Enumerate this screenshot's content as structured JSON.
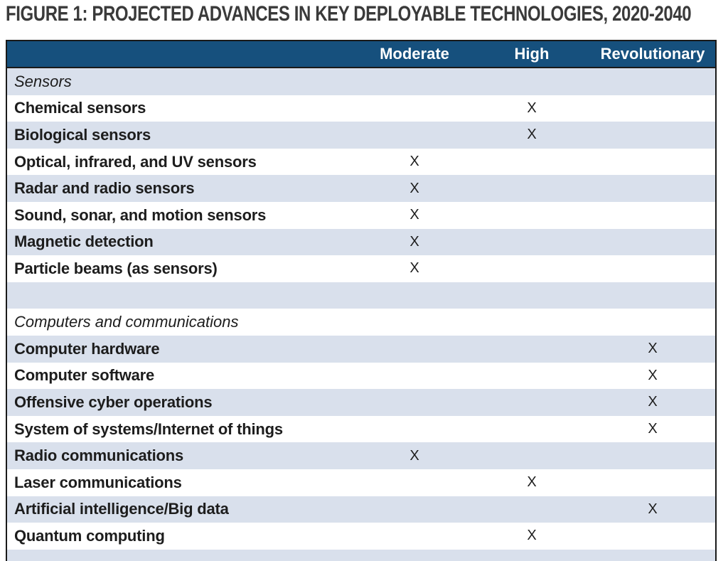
{
  "title": "FIGURE 1: PROJECTED ADVANCES IN KEY DEPLOYABLE TECHNOLOGIES, 2020-2040",
  "colors": {
    "header_bg": "#16507D",
    "header_text": "#FFFFFF",
    "stripe_bg": "#D9E0EC",
    "row_bg": "#FFFFFF",
    "border": "#1A1A1A",
    "title_text": "#3A3A3A",
    "body_text": "#1D1D1D"
  },
  "table": {
    "columns": [
      "Moderate",
      "High",
      "Revolutionary"
    ],
    "mark_symbol": "X",
    "rows": [
      {
        "type": "section",
        "label": "Sensors",
        "moderate": "",
        "high": "",
        "revolutionary": ""
      },
      {
        "type": "item",
        "label": "Chemical sensors",
        "moderate": "",
        "high": "X",
        "revolutionary": ""
      },
      {
        "type": "item",
        "label": "Biological sensors",
        "moderate": "",
        "high": "X",
        "revolutionary": ""
      },
      {
        "type": "item",
        "label": "Optical, infrared, and UV sensors",
        "moderate": "X",
        "high": "",
        "revolutionary": ""
      },
      {
        "type": "item",
        "label": "Radar and radio sensors",
        "moderate": "X",
        "high": "",
        "revolutionary": ""
      },
      {
        "type": "item",
        "label": "Sound, sonar, and motion sensors",
        "moderate": "X",
        "high": "",
        "revolutionary": ""
      },
      {
        "type": "item",
        "label": "Magnetic detection",
        "moderate": "X",
        "high": "",
        "revolutionary": ""
      },
      {
        "type": "item",
        "label": "Particle beams (as sensors)",
        "moderate": "X",
        "high": "",
        "revolutionary": ""
      },
      {
        "type": "blank",
        "label": "",
        "moderate": "",
        "high": "",
        "revolutionary": ""
      },
      {
        "type": "section",
        "label": "Computers and communications",
        "moderate": "",
        "high": "",
        "revolutionary": ""
      },
      {
        "type": "item",
        "label": "Computer hardware",
        "moderate": "",
        "high": "",
        "revolutionary": "X"
      },
      {
        "type": "item",
        "label": "Computer software",
        "moderate": "",
        "high": "",
        "revolutionary": "X"
      },
      {
        "type": "item",
        "label": "Offensive cyber operations",
        "moderate": "",
        "high": "",
        "revolutionary": "X"
      },
      {
        "type": "item",
        "label": "System of systems/Internet of things",
        "moderate": "",
        "high": "",
        "revolutionary": "X"
      },
      {
        "type": "item",
        "label": "Radio communications",
        "moderate": "X",
        "high": "",
        "revolutionary": ""
      },
      {
        "type": "item",
        "label": "Laser communications",
        "moderate": "",
        "high": "X",
        "revolutionary": ""
      },
      {
        "type": "item",
        "label": "Artificial intelligence/Big data",
        "moderate": "",
        "high": "",
        "revolutionary": "X"
      },
      {
        "type": "item",
        "label": "Quantum computing",
        "moderate": "",
        "high": "X",
        "revolutionary": ""
      },
      {
        "type": "blank",
        "label": "",
        "moderate": "",
        "high": "",
        "revolutionary": ""
      }
    ]
  }
}
